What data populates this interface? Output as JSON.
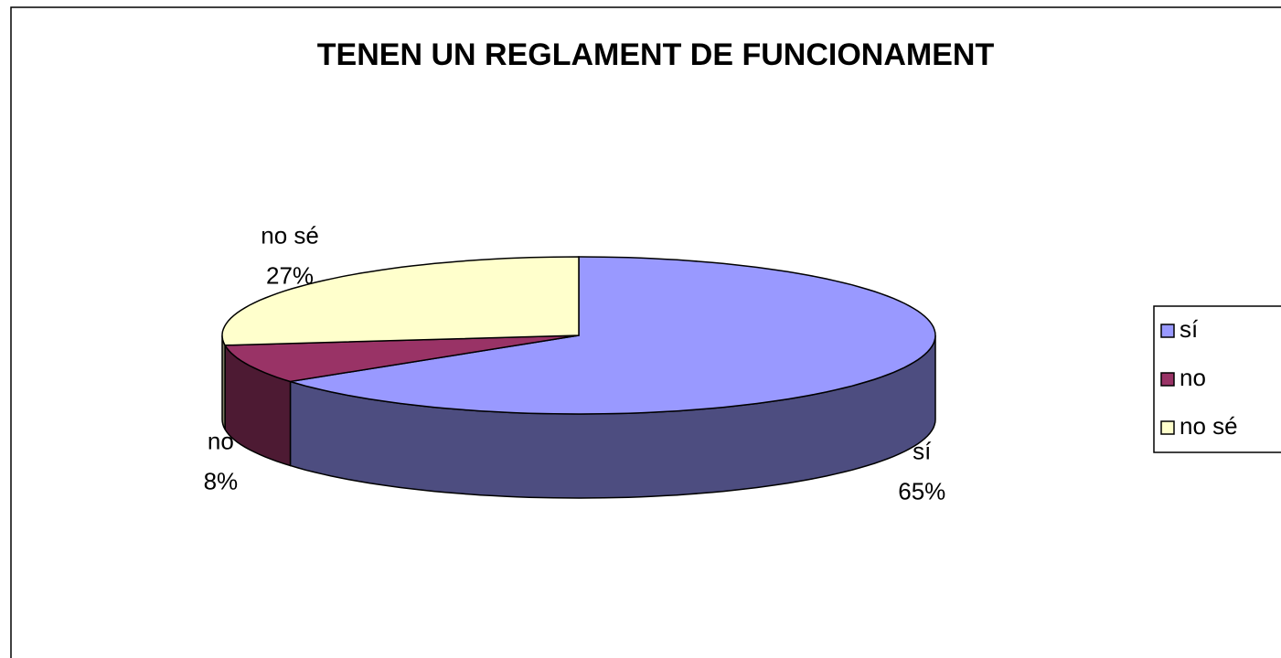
{
  "chart_data": {
    "type": "pie",
    "title": "TENEN UN REGLAMENT DE FUNCIONAMENT",
    "categories": [
      "sí",
      "no",
      "no sé"
    ],
    "values": [
      65,
      8,
      27
    ],
    "value_labels": [
      "65%",
      "8%",
      "27%"
    ],
    "colors": [
      "#9999ff",
      "#993366",
      "#ffffcc"
    ],
    "legend": "right"
  }
}
